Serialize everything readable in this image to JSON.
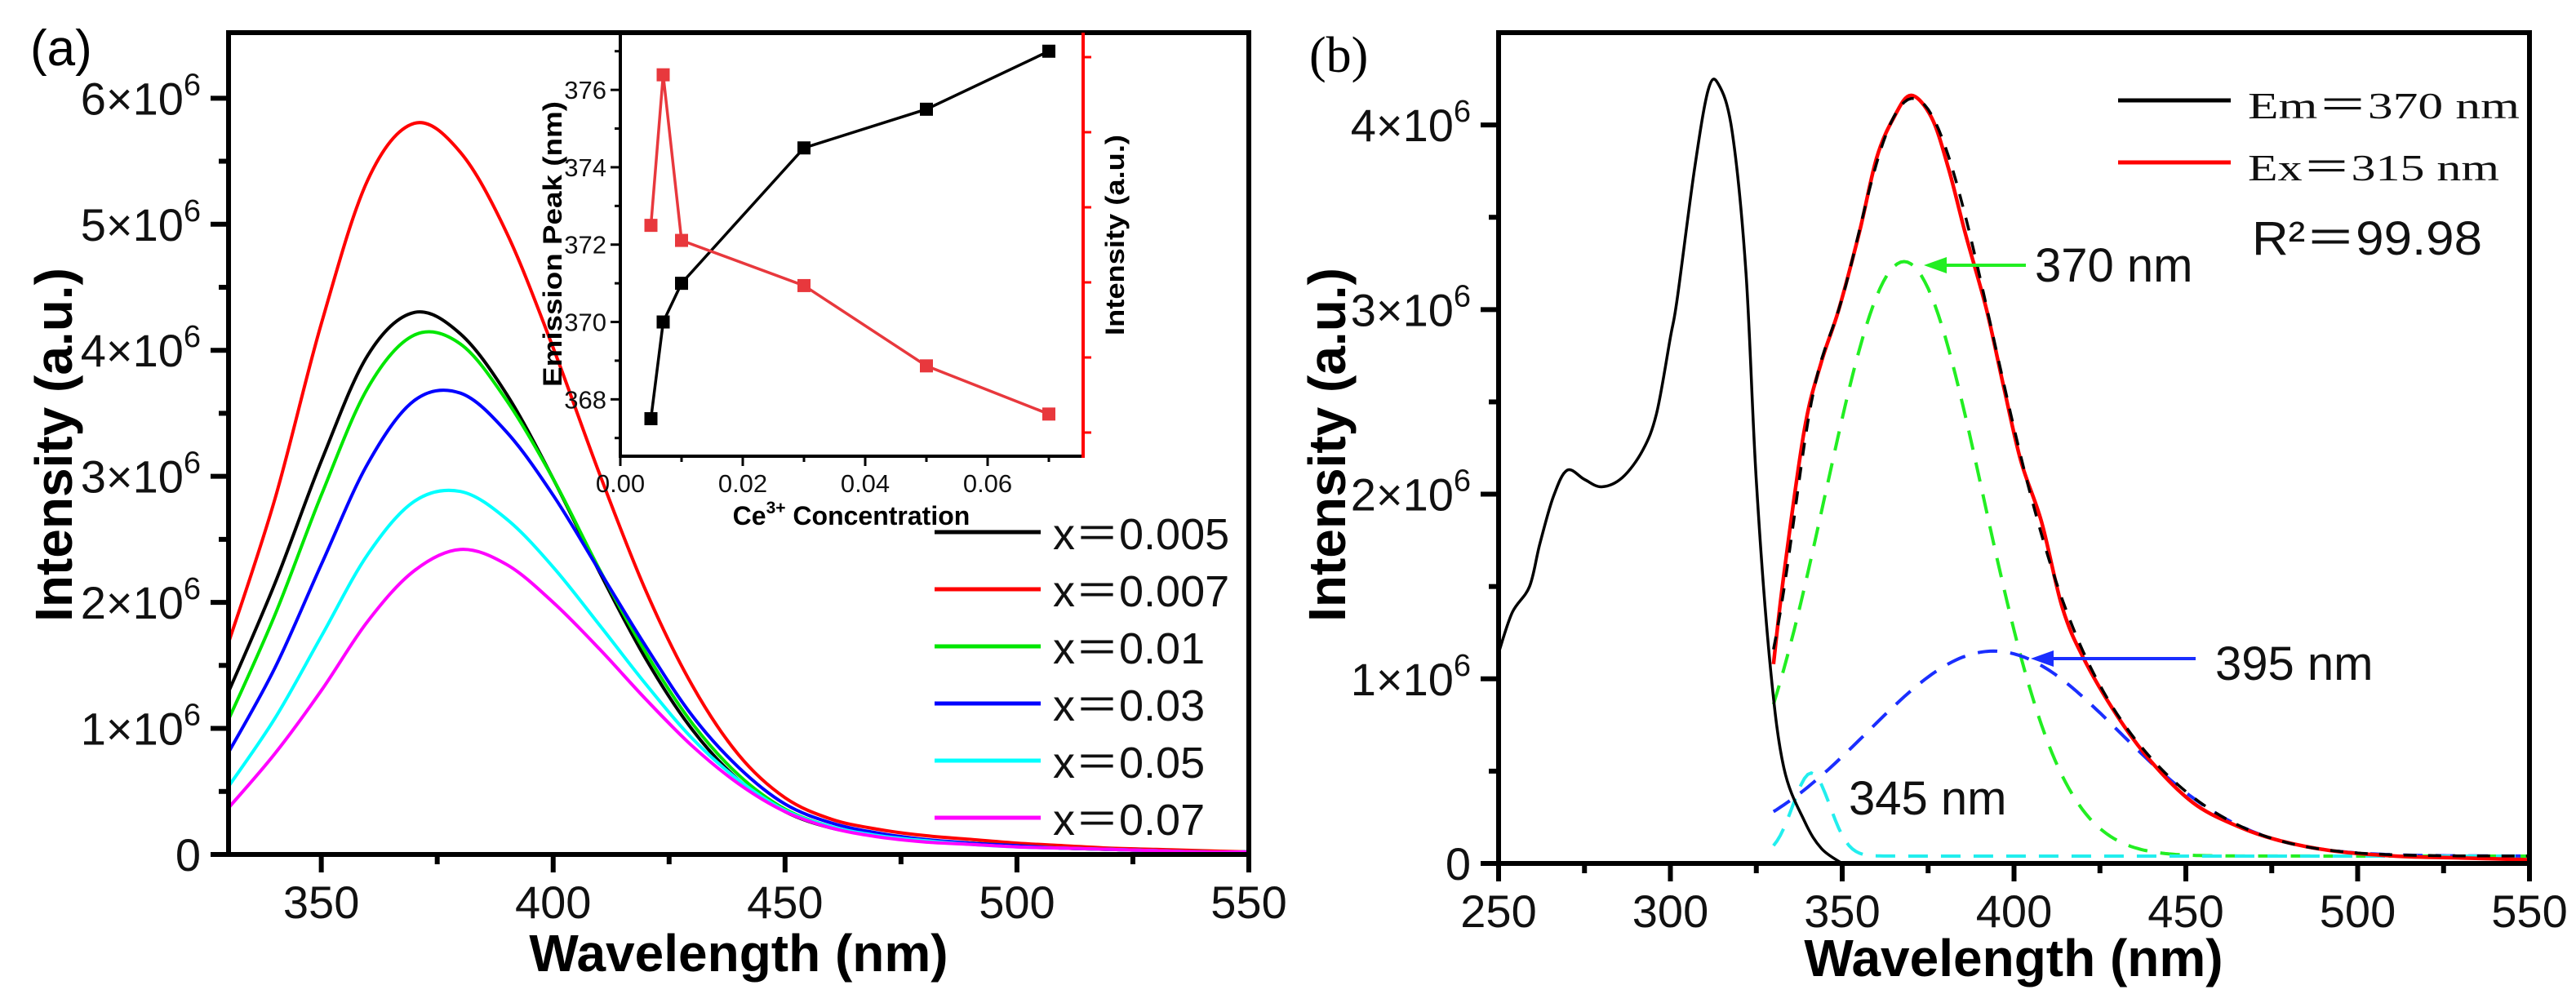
{
  "panel_labels": {
    "a": "(a)",
    "b": "(b)"
  },
  "chart_data": [
    {
      "id": "panel-a",
      "type": "line",
      "title": "",
      "xlabel": "Wavelength (nm)",
      "ylabel": "Intensity (a.u.)",
      "xlim": [
        330,
        550
      ],
      "ylim": [
        0,
        6.52
      ],
      "y_scale_note": "values in units of 10^6",
      "grid": false,
      "legend": "bottom-right",
      "xticks": [
        {
          "v": 350,
          "label": "350"
        },
        {
          "v": 400,
          "label": "400"
        },
        {
          "v": 450,
          "label": "450"
        },
        {
          "v": 500,
          "label": "500"
        },
        {
          "v": 550,
          "label": "550"
        }
      ],
      "yticks": [
        {
          "v": 0,
          "label": "0",
          "sup": ""
        },
        {
          "v": 1,
          "label": "1×10",
          "sup": "6"
        },
        {
          "v": 2,
          "label": "2×10",
          "sup": "6"
        },
        {
          "v": 3,
          "label": "3×10",
          "sup": "6"
        },
        {
          "v": 4,
          "label": "4×10",
          "sup": "6"
        },
        {
          "v": 5,
          "label": "5×10",
          "sup": "6"
        },
        {
          "v": 6,
          "label": "6×10",
          "sup": "6"
        }
      ],
      "x": [
        330,
        340,
        350,
        360,
        370,
        380,
        390,
        400,
        410,
        420,
        430,
        440,
        450,
        460,
        470,
        480,
        490,
        500,
        510,
        520,
        530,
        540,
        550
      ],
      "series": [
        {
          "name": "x＝0.005",
          "color": "#000000",
          "values": [
            1.29,
            2.15,
            3.12,
            3.96,
            4.3,
            4.13,
            3.65,
            2.98,
            2.24,
            1.55,
            0.99,
            0.59,
            0.34,
            0.21,
            0.15,
            0.11,
            0.09,
            0.07,
            0.05,
            0.04,
            0.03,
            0.02,
            0.02
          ]
        },
        {
          "name": "x＝0.007",
          "color": "#ff0000",
          "values": [
            1.68,
            2.82,
            4.21,
            5.35,
            5.8,
            5.57,
            4.93,
            4.02,
            3.02,
            2.09,
            1.34,
            0.79,
            0.45,
            0.28,
            0.2,
            0.15,
            0.12,
            0.09,
            0.07,
            0.05,
            0.04,
            0.03,
            0.02
          ]
        },
        {
          "name": "x＝0.01",
          "color": "#00e600",
          "values": [
            1.07,
            1.9,
            2.85,
            3.7,
            4.12,
            4.05,
            3.6,
            2.98,
            2.26,
            1.6,
            1.04,
            0.63,
            0.36,
            0.22,
            0.15,
            0.11,
            0.09,
            0.07,
            0.05,
            0.04,
            0.03,
            0.02,
            0.02
          ]
        },
        {
          "name": "x＝0.03",
          "color": "#0000ff",
          "values": [
            0.81,
            1.48,
            2.3,
            3.1,
            3.6,
            3.66,
            3.35,
            2.85,
            2.25,
            1.65,
            1.1,
            0.69,
            0.4,
            0.25,
            0.17,
            0.12,
            0.09,
            0.07,
            0.05,
            0.04,
            0.03,
            0.02,
            0.02
          ]
        },
        {
          "name": "x＝0.05",
          "color": "#00ffff",
          "values": [
            0.54,
            1.08,
            1.73,
            2.38,
            2.8,
            2.88,
            2.66,
            2.28,
            1.82,
            1.35,
            0.92,
            0.59,
            0.35,
            0.22,
            0.15,
            0.11,
            0.08,
            0.06,
            0.05,
            0.04,
            0.03,
            0.02,
            0.02
          ]
        },
        {
          "name": "x＝0.07",
          "color": "#ff00ff",
          "values": [
            0.37,
            0.8,
            1.3,
            1.85,
            2.25,
            2.42,
            2.3,
            2.0,
            1.63,
            1.23,
            0.86,
            0.56,
            0.34,
            0.21,
            0.14,
            0.1,
            0.08,
            0.06,
            0.05,
            0.04,
            0.03,
            0.02,
            0.02
          ]
        }
      ]
    },
    {
      "id": "panel-a-inset",
      "type": "line",
      "xlabel": {
        "pre": "Ce",
        "sup": "3+",
        "post": " Concentration"
      },
      "ylabel_left": "Emission Peak (nm)",
      "ylabel_right": "Intensity (a.u.)",
      "xlim": [
        0,
        0.0756
      ],
      "ylim_left": [
        366.53,
        377.48
      ],
      "ylim_right": [
        2.0,
        6.22
      ],
      "xticks": [
        {
          "v": 0,
          "label": "0.00"
        },
        {
          "v": 0.02,
          "label": "0.02"
        },
        {
          "v": 0.04,
          "label": "0.04"
        },
        {
          "v": 0.06,
          "label": "0.06"
        }
      ],
      "yticks_left": [
        {
          "v": 368,
          "label": "368"
        },
        {
          "v": 370,
          "label": "370"
        },
        {
          "v": 372,
          "label": "372"
        },
        {
          "v": 374,
          "label": "374"
        },
        {
          "v": 376,
          "label": "376"
        }
      ],
      "x": [
        0.005,
        0.007,
        0.01,
        0.03,
        0.05,
        0.07
      ],
      "series": [
        {
          "name": "Emission Peak",
          "axis": "left",
          "color": "#000000",
          "values": [
            367.5,
            370.0,
            371.0,
            374.5,
            375.5,
            377.0
          ]
        },
        {
          "name": "Intensity",
          "axis": "right",
          "color": "#e8383d",
          "values": [
            4.3,
            5.8,
            4.15,
            3.7,
            2.9,
            2.42
          ]
        }
      ]
    },
    {
      "id": "panel-b",
      "type": "line",
      "xlabel": "Wavelength (nm)",
      "ylabel": "Intensity (a.u.)",
      "xlim": [
        250,
        550
      ],
      "ylim": [
        0,
        4.5
      ],
      "y_scale_note": "values in units of 10^6",
      "legend": "top-right",
      "xticks": [
        {
          "v": 250,
          "label": "250"
        },
        {
          "v": 300,
          "label": "300"
        },
        {
          "v": 350,
          "label": "350"
        },
        {
          "v": 400,
          "label": "400"
        },
        {
          "v": 450,
          "label": "450"
        },
        {
          "v": 500,
          "label": "500"
        },
        {
          "v": 550,
          "label": "550"
        }
      ],
      "yticks": [
        {
          "v": 0,
          "label": "0",
          "sup": ""
        },
        {
          "v": 1,
          "label": "1×10",
          "sup": "6"
        },
        {
          "v": 2,
          "label": "2×10",
          "sup": "6"
        },
        {
          "v": 3,
          "label": "3×10",
          "sup": "6"
        },
        {
          "v": 4,
          "label": "4×10",
          "sup": "6"
        }
      ],
      "series": [
        {
          "name": "Em＝370 nm",
          "color": "#000000",
          "x": [
            250,
            254,
            259,
            262,
            266,
            270,
            275,
            280,
            286,
            292,
            296,
            300,
            302,
            307,
            311,
            314,
            318,
            322,
            325,
            329,
            333,
            339,
            344,
            350
          ],
          "values": [
            1.14,
            1.36,
            1.5,
            1.73,
            1.99,
            2.13,
            2.08,
            2.04,
            2.09,
            2.24,
            2.44,
            2.85,
            3.06,
            3.76,
            4.19,
            4.22,
            3.96,
            3.2,
            2.07,
            1.08,
            0.52,
            0.23,
            0.08,
            0.0
          ]
        },
        {
          "name": "Ex＝315 nm",
          "color": "#ff0000",
          "x": [
            330,
            333,
            339,
            344,
            349,
            355,
            360,
            365,
            370,
            376,
            381,
            386,
            392,
            397,
            402,
            408,
            414,
            420,
            430,
            440,
            452,
            464,
            476,
            492,
            511,
            530,
            550
          ],
          "values": [
            1.08,
            1.56,
            2.35,
            2.72,
            3.0,
            3.42,
            3.82,
            4.04,
            4.16,
            4.04,
            3.76,
            3.4,
            3.0,
            2.58,
            2.18,
            1.85,
            1.39,
            1.12,
            0.8,
            0.55,
            0.33,
            0.21,
            0.13,
            0.07,
            0.04,
            0.03,
            0.02
          ]
        }
      ],
      "fit": {
        "range": [
          330,
          550
        ],
        "baseline": 0.04,
        "sum_color": "#000000",
        "components": [
          {
            "name": "370 nm",
            "center": 368,
            "amplitude": 3.22,
            "sigma": 23,
            "color": "#22ee22"
          },
          {
            "name": "395 nm",
            "center": 394,
            "amplitude": 1.11,
            "sigma": 36.6,
            "color": "#1a2eff"
          },
          {
            "name": "345 nm",
            "center": 341,
            "amplitude": 0.45,
            "sigma": 5.4,
            "color": "#22eeee"
          }
        ]
      },
      "annotations": {
        "r2": "R²＝99.98"
      }
    }
  ]
}
